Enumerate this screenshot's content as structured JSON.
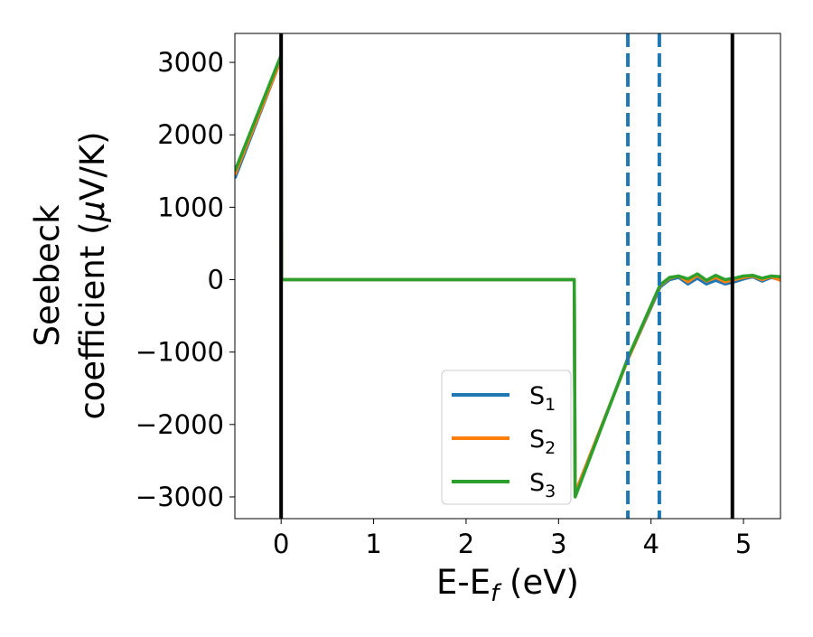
{
  "chart_data": {
    "type": "line",
    "xlabel": "E-E",
    "xlabel_sub": "f",
    "xlabel_unit": " (eV)",
    "ylabel_line1": "Seebeck",
    "ylabel_line2_prefix": "coefficient  (",
    "ylabel_mu": "μ",
    "ylabel_line2_suffix": "V/K)",
    "xlim": [
      -0.5,
      5.4
    ],
    "ylim": [
      -3300,
      3400
    ],
    "xticks": [
      0,
      1,
      2,
      3,
      4,
      5
    ],
    "yticks": [
      3000,
      2000,
      1000,
      0,
      -1000,
      -2000,
      -3000
    ],
    "xtick_labels": [
      "0",
      "1",
      "2",
      "3",
      "4",
      "5"
    ],
    "ytick_labels": [
      "3000",
      "2000",
      "1000",
      "0",
      "−1000",
      "−2000",
      "−3000"
    ],
    "grid": false,
    "legend_position": "lower-right",
    "vertical_lines": [
      {
        "x": 0.0,
        "style": "solid",
        "color": "#000000"
      },
      {
        "x": 4.88,
        "style": "solid",
        "color": "#000000"
      },
      {
        "x": 3.75,
        "style": "dashed",
        "color": "#1f77b4"
      },
      {
        "x": 4.09,
        "style": "dashed",
        "color": "#1f77b4"
      }
    ],
    "series": [
      {
        "name": "S",
        "sub": "1",
        "color": "#1f77b4",
        "x": [
          -0.5,
          0.0,
          0.005,
          3.17,
          3.18,
          3.75,
          4.1,
          4.2,
          4.3,
          4.4,
          4.5,
          4.6,
          4.7,
          4.8,
          4.9,
          5.0,
          5.1,
          5.2,
          5.3,
          5.4
        ],
        "y": [
          1400,
          3050,
          0,
          0,
          -2950,
          -1100,
          -100,
          0,
          30,
          -60,
          20,
          -60,
          -10,
          -60,
          -30,
          10,
          40,
          -20,
          30,
          0
        ]
      },
      {
        "name": "S",
        "sub": "2",
        "color": "#ff7f0e",
        "x": [
          -0.5,
          0.0,
          0.005,
          3.17,
          3.18,
          3.75,
          4.1,
          4.2,
          4.3,
          4.4,
          4.5,
          4.6,
          4.7,
          4.8,
          4.9,
          5.0,
          5.1,
          5.2,
          5.3,
          5.4
        ],
        "y": [
          1450,
          3050,
          0,
          0,
          -2950,
          -1100,
          -80,
          20,
          50,
          -30,
          60,
          -20,
          30,
          -30,
          0,
          30,
          50,
          0,
          40,
          -10
        ]
      },
      {
        "name": "S",
        "sub": "3",
        "color": "#2ca02c",
        "x": [
          -0.5,
          0.0,
          0.005,
          3.17,
          3.18,
          3.75,
          4.1,
          4.2,
          4.3,
          4.4,
          4.5,
          4.6,
          4.7,
          4.8,
          4.9,
          5.0,
          5.1,
          5.2,
          5.3,
          5.4
        ],
        "y": [
          1500,
          3100,
          0,
          0,
          -3000,
          -1080,
          -70,
          30,
          50,
          10,
          80,
          -10,
          60,
          0,
          20,
          50,
          60,
          20,
          50,
          40
        ]
      }
    ]
  }
}
